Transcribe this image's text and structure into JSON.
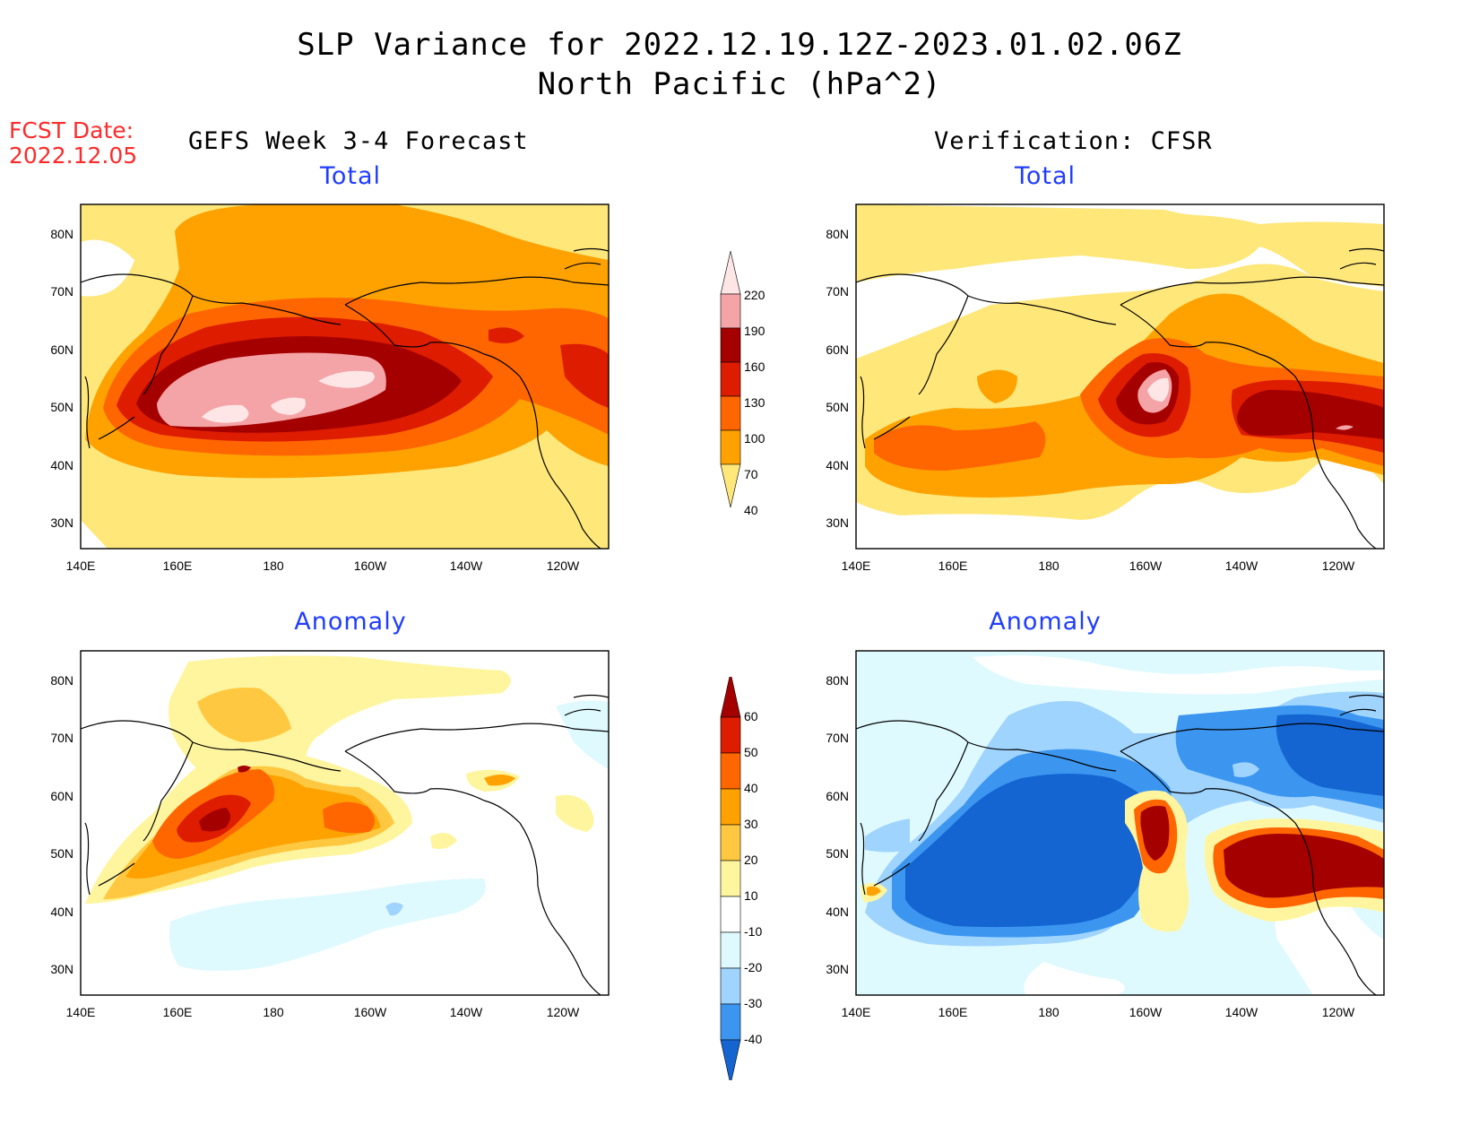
{
  "header": {
    "title_line1": "SLP Variance for 2022.12.19.12Z-2023.01.02.06Z",
    "title_line2": "North Pacific (hPa^2)",
    "fcst_label": "FCST Date:",
    "fcst_date": "2022.12.05"
  },
  "columns": {
    "left": "GEFS Week 3-4 Forecast",
    "right": "Verification: CFSR"
  },
  "panels": {
    "top_left_title": "Total",
    "top_right_title": "Total",
    "bottom_left_title": "Anomaly",
    "bottom_right_title": "Anomaly"
  },
  "axes": {
    "lat_labels": [
      "80N",
      "70N",
      "60N",
      "50N",
      "40N",
      "30N"
    ],
    "lon_labels": [
      "140E",
      "160E",
      "180",
      "160W",
      "140W",
      "120W"
    ]
  },
  "colorbar_total": {
    "labels": [
      "220",
      "190",
      "160",
      "130",
      "100",
      "70",
      "40"
    ],
    "colors": [
      "#ffe6e6",
      "#f4a3a6",
      "#a50000",
      "#dd1c00",
      "#ff6600",
      "#ffa200",
      "#ffe77a"
    ]
  },
  "colorbar_anomaly": {
    "labels": [
      "60",
      "50",
      "40",
      "30",
      "20",
      "10",
      "-10",
      "-20",
      "-30",
      "-40"
    ],
    "colors": [
      "#a50000",
      "#dd1c00",
      "#ff6600",
      "#ffa200",
      "#ffc840",
      "#fff59e",
      "#ffffff",
      "#dffaff",
      "#9fd4ff",
      "#3c96f0",
      "#1464d2"
    ]
  }
}
